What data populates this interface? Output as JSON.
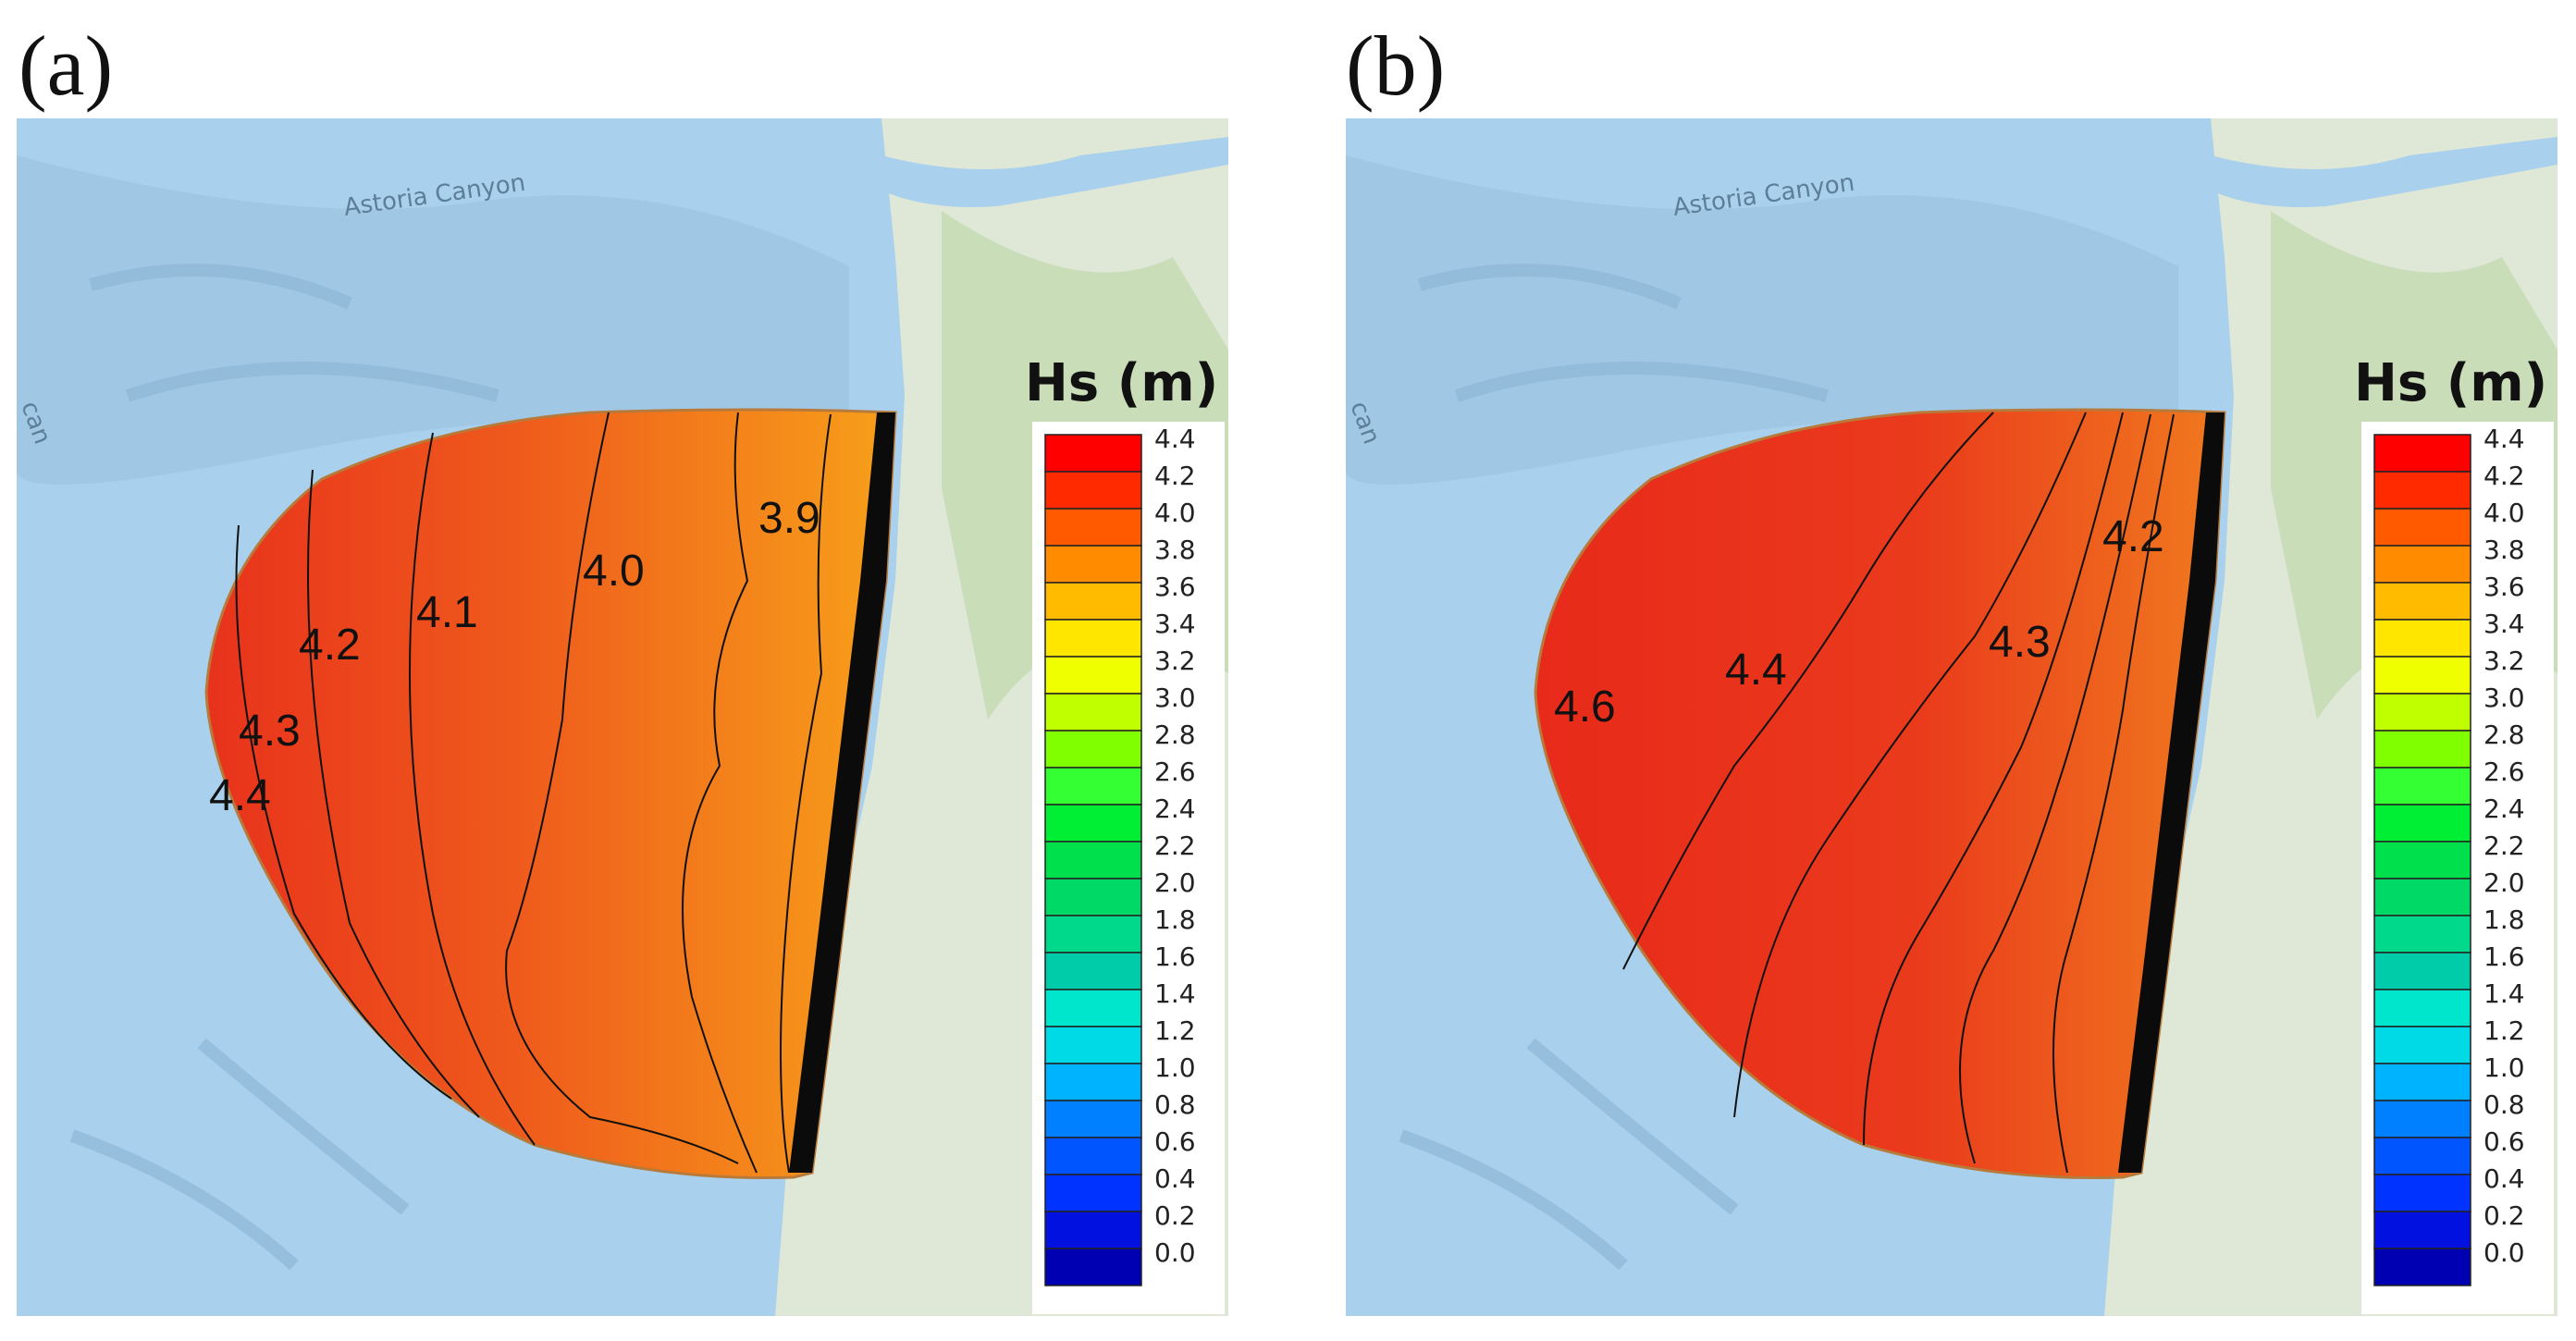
{
  "panels": [
    {
      "id": "a",
      "letter": "(a)",
      "legend_title": "Hs (m)",
      "contour_labels": [
        "4.4",
        "4.3",
        "4.2",
        "4.1",
        "4.0",
        "3.9"
      ],
      "colors": {
        "offshore": "#e8321c",
        "mid": "#ef5a1c",
        "nearshore": "#f7a01a"
      }
    },
    {
      "id": "b",
      "letter": "(b)",
      "legend_title": "Hs (m)",
      "contour_labels": [
        "4.6",
        "4.4",
        "4.3",
        "4.2"
      ],
      "colors": {
        "offshore": "#e82a1a",
        "mid": "#ea3a1c",
        "nearshore": "#f07a1e"
      }
    }
  ],
  "map_labels": {
    "canyon": "Astoria Canyon",
    "edge": "can"
  },
  "legend": {
    "ticks": [
      "4.4",
      "4.2",
      "4.0",
      "3.8",
      "3.6",
      "3.4",
      "3.2",
      "3.0",
      "2.8",
      "2.6",
      "2.4",
      "2.2",
      "2.0",
      "1.8",
      "1.6",
      "1.4",
      "1.2",
      "1.0",
      "0.8",
      "0.6",
      "0.4",
      "0.2",
      "0.0"
    ],
    "colors": [
      "#ff0000",
      "#ff2a00",
      "#ff5a00",
      "#ff8c00",
      "#ffbb00",
      "#ffe600",
      "#f0ff00",
      "#c0ff00",
      "#80ff00",
      "#33ff33",
      "#00ee33",
      "#00e04d",
      "#00d966",
      "#00d98c",
      "#00ccaa",
      "#00e6cc",
      "#00d9e6",
      "#00b3ff",
      "#0080ff",
      "#0055ff",
      "#0033ff",
      "#0011e0",
      "#0000b3"
    ]
  }
}
